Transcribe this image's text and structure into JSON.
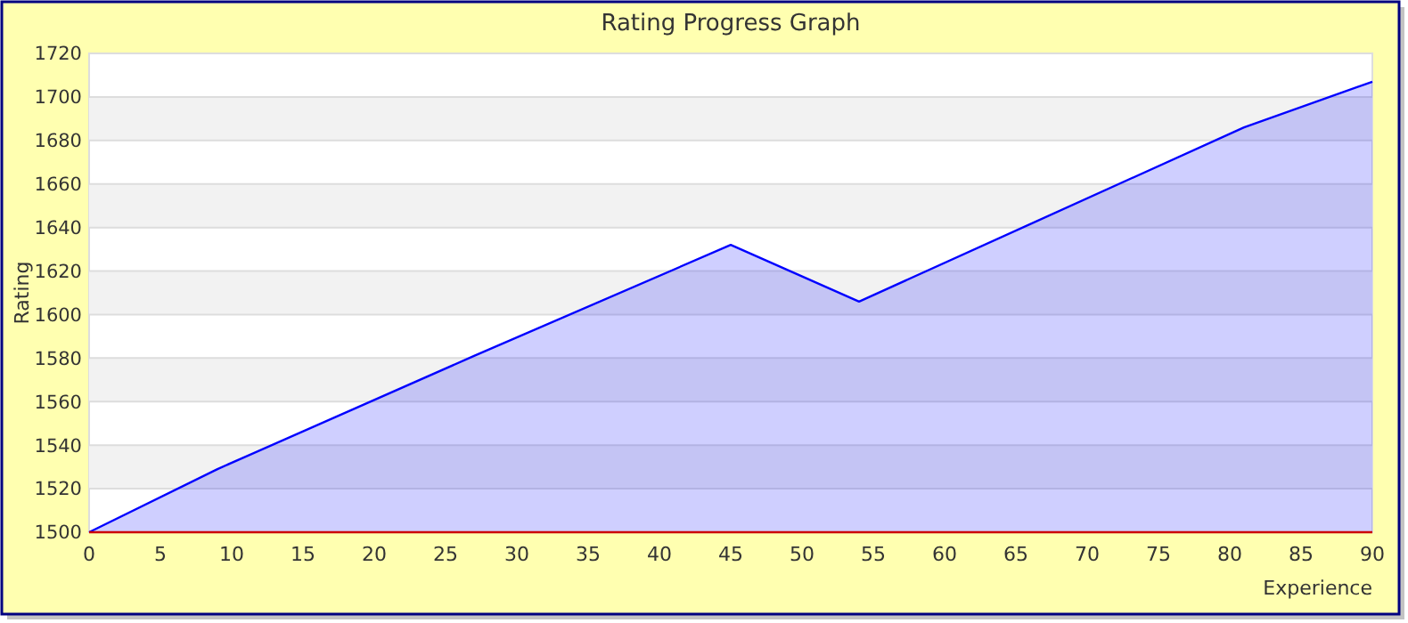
{
  "chart_data": {
    "type": "area",
    "title": "Rating Progress Graph",
    "xlabel": "Experience",
    "ylabel": "Rating",
    "x": [
      0,
      9,
      27,
      45,
      54,
      81,
      90
    ],
    "series": [
      {
        "color": "#0000ff",
        "values": [
          1500,
          1529,
          1581,
          1632,
          1606,
          1686,
          1707
        ]
      }
    ],
    "xlim": [
      0,
      90
    ],
    "xticks": [
      0,
      5,
      10,
      15,
      20,
      25,
      30,
      35,
      40,
      45,
      50,
      55,
      60,
      65,
      70,
      75,
      80,
      85,
      90
    ],
    "ylim": [
      1500,
      1720
    ],
    "yticks": [
      1500,
      1520,
      1540,
      1560,
      1580,
      1600,
      1620,
      1640,
      1660,
      1680,
      1700,
      1720
    ],
    "grid": "y",
    "marker": "none"
  }
}
